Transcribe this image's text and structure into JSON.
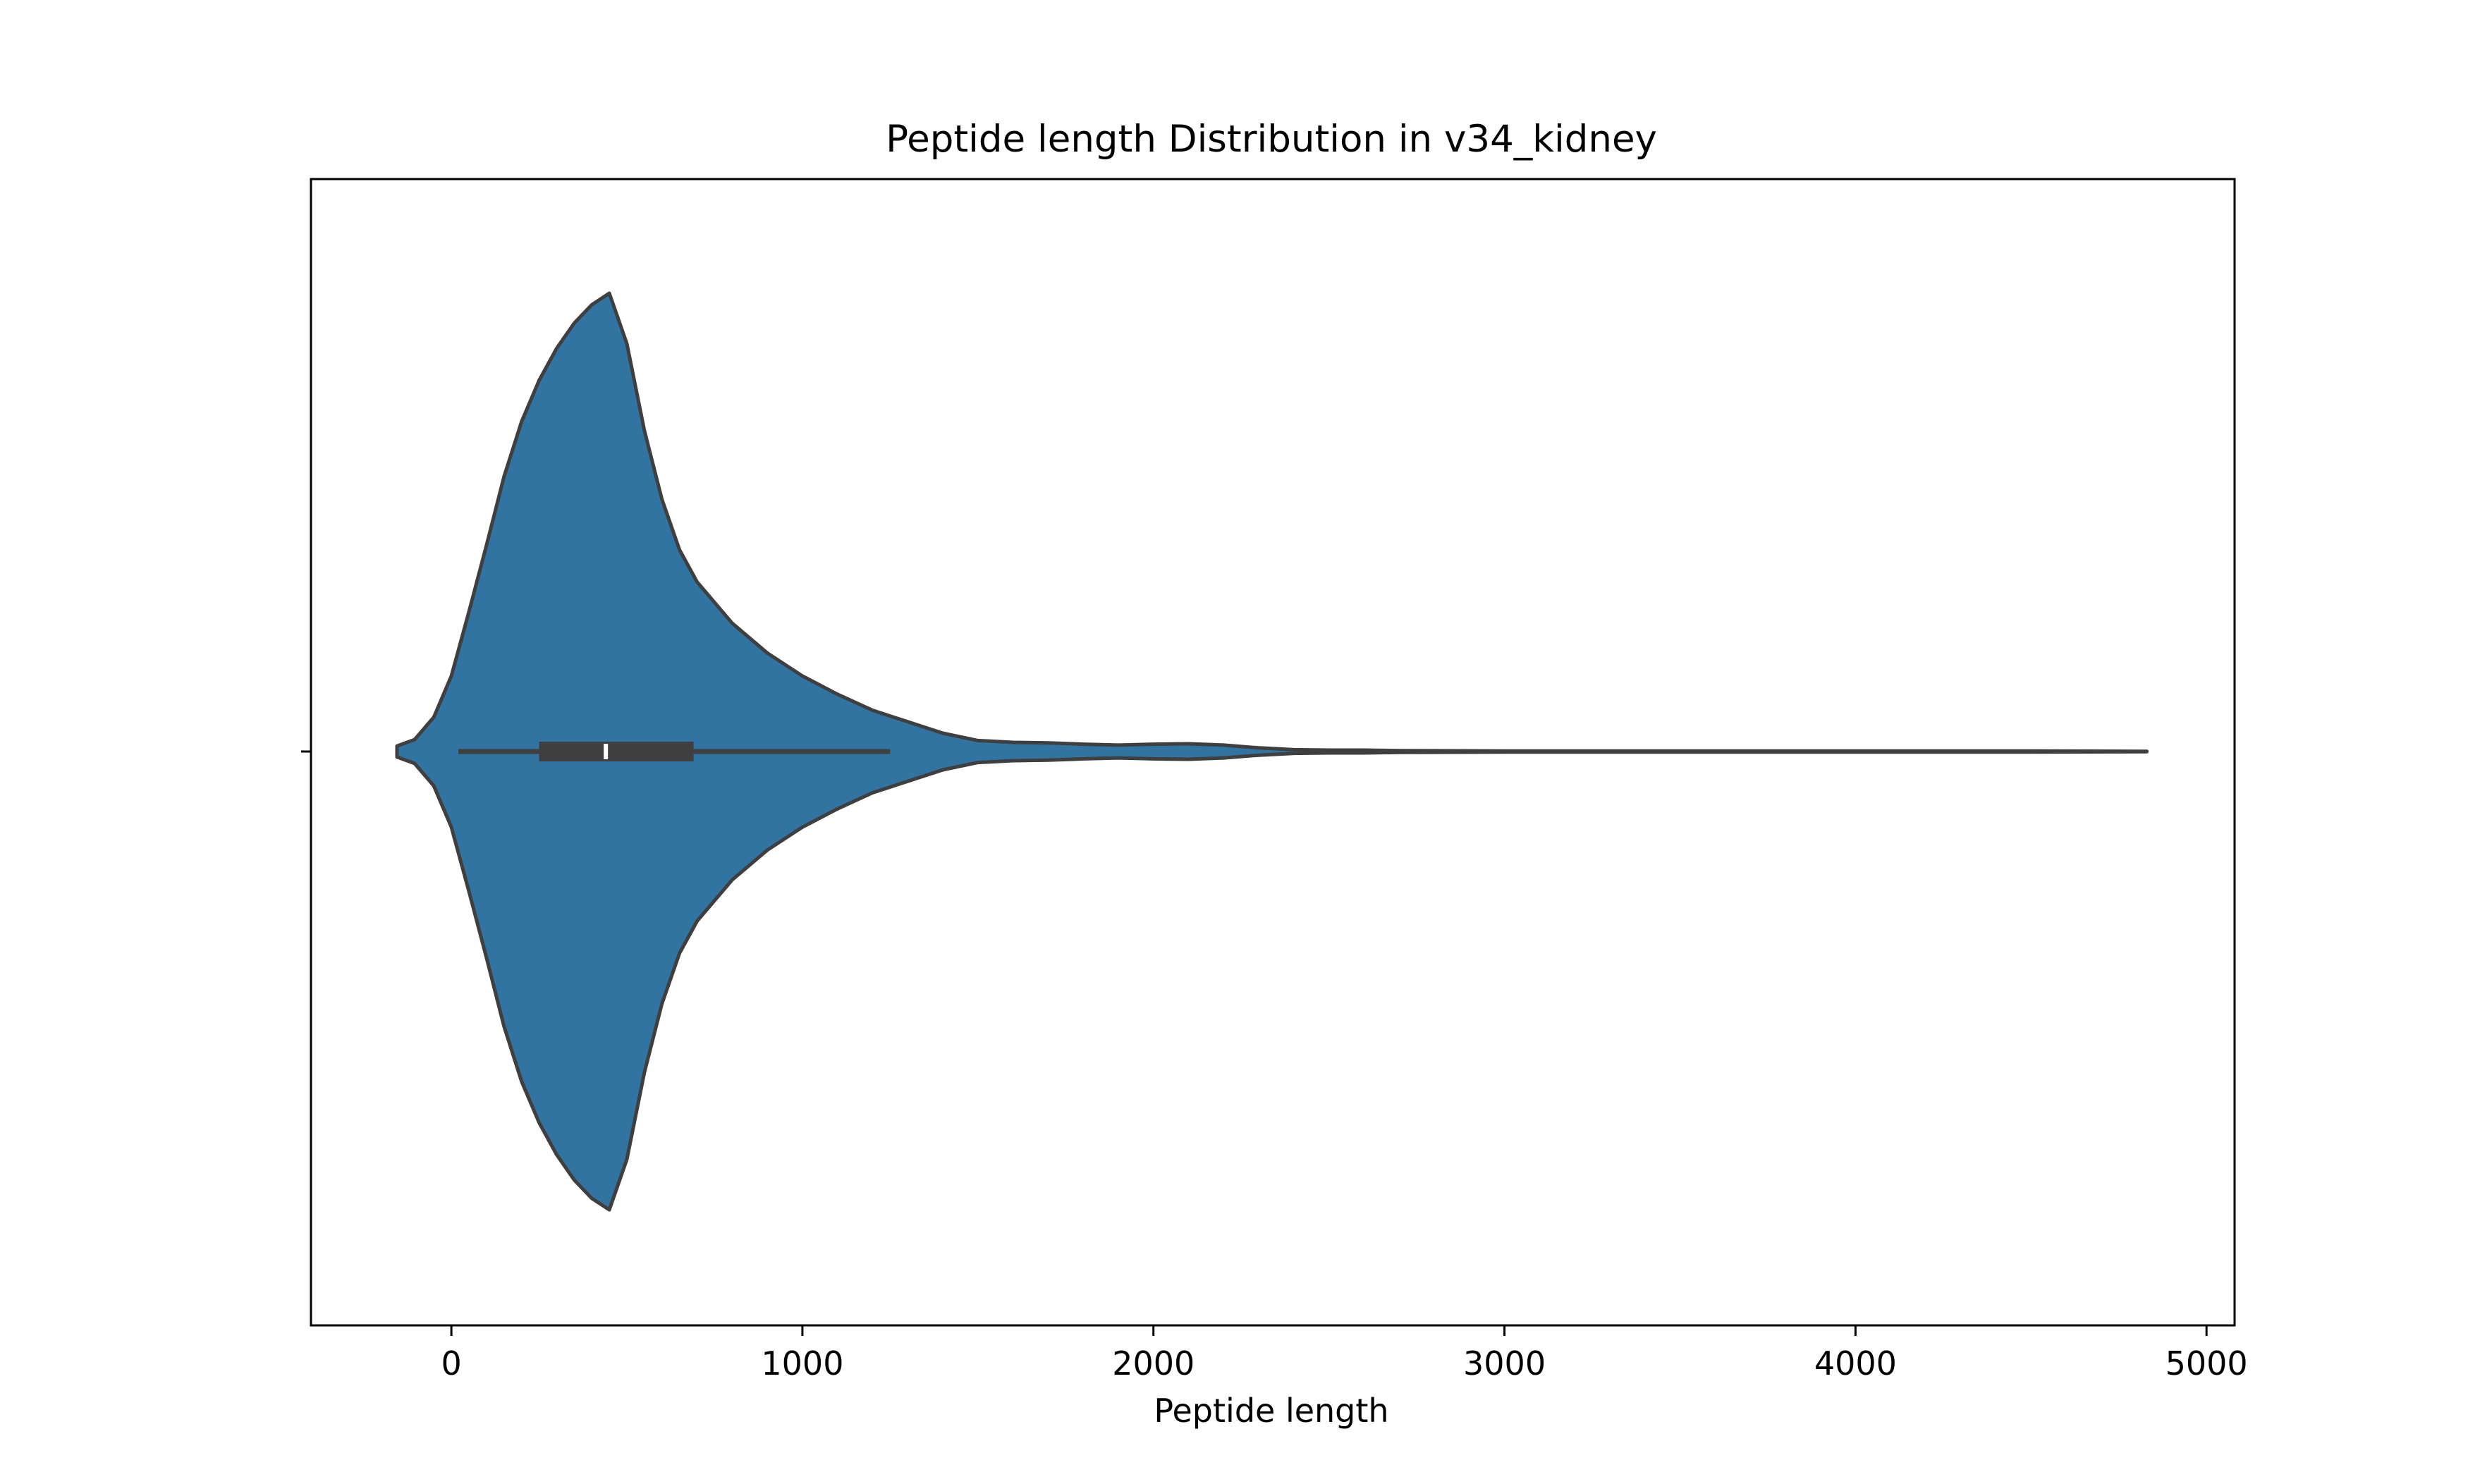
{
  "chart_data": {
    "type": "violin",
    "title": "Peptide length Distribution in v34_kidney",
    "xlabel": "Peptide length",
    "ylabel": "",
    "xlim": [
      -400,
      5080
    ],
    "xticks": [
      0,
      1000,
      2000,
      3000,
      4000,
      5000
    ],
    "xtick_labels": [
      "0",
      "1000",
      "2000",
      "3000",
      "4000",
      "5000"
    ],
    "grid": false,
    "legend": "none",
    "series": [
      {
        "density_profile": [
          [
            -155,
            0.012
          ],
          [
            -105,
            0.026
          ],
          [
            -50,
            0.075
          ],
          [
            0,
            0.165
          ],
          [
            50,
            0.305
          ],
          [
            100,
            0.45
          ],
          [
            150,
            0.6
          ],
          [
            200,
            0.72
          ],
          [
            250,
            0.81
          ],
          [
            300,
            0.88
          ],
          [
            350,
            0.935
          ],
          [
            400,
            0.975
          ],
          [
            450,
            1.0
          ],
          [
            500,
            0.89
          ],
          [
            550,
            0.7
          ],
          [
            600,
            0.55
          ],
          [
            650,
            0.44
          ],
          [
            700,
            0.37
          ],
          [
            800,
            0.28
          ],
          [
            900,
            0.215
          ],
          [
            1000,
            0.165
          ],
          [
            1100,
            0.125
          ],
          [
            1200,
            0.09
          ],
          [
            1300,
            0.065
          ],
          [
            1400,
            0.04
          ],
          [
            1500,
            0.024
          ],
          [
            1600,
            0.02
          ],
          [
            1700,
            0.019
          ],
          [
            1800,
            0.016
          ],
          [
            1900,
            0.014
          ],
          [
            2000,
            0.016
          ],
          [
            2100,
            0.017
          ],
          [
            2200,
            0.014
          ],
          [
            2300,
            0.008
          ],
          [
            2400,
            0.004
          ],
          [
            2500,
            0.003
          ],
          [
            2600,
            0.003
          ],
          [
            2700,
            0.002
          ],
          [
            3000,
            0.001
          ],
          [
            3500,
            0.001
          ],
          [
            4000,
            0.001
          ],
          [
            4500,
            0.001
          ],
          [
            4830,
            0.0005
          ]
        ],
        "box": {
          "whisker_low": 20,
          "q1": 250,
          "median": 440,
          "q3": 690,
          "whisker_high": 1250
        }
      }
    ],
    "colors": {
      "fill": "#3274a1",
      "edge": "#3f3f3f",
      "median": "#ffffff",
      "axes": "#000000"
    }
  }
}
